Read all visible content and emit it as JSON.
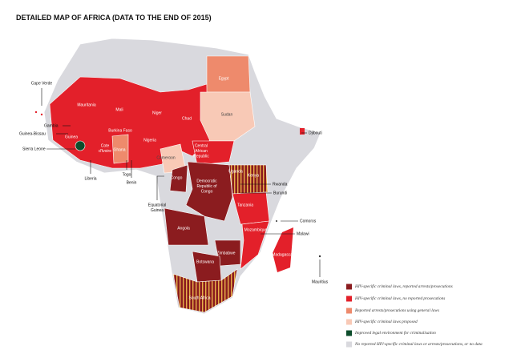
{
  "title": "DETAILED MAP OF AFRICA (DATA TO THE END OF 2015)",
  "labels": [
    [
      "Cape Verde"
    ],
    [
      "Mauritania"
    ],
    [
      "Mali"
    ],
    [
      "Niger"
    ],
    [
      "Chad"
    ],
    [
      "Egypt"
    ],
    [
      "Sudan"
    ],
    [
      "Djibouti"
    ],
    [
      "Gambia"
    ],
    [
      "Guinea-Bissau"
    ],
    [
      "Guinea"
    ],
    [
      "Sierra Leone"
    ],
    [
      "Liberia"
    ],
    [
      "Cote",
      "d'Ivoire"
    ],
    [
      "Burkina Faso"
    ],
    [
      "Ghana"
    ],
    [
      "Togo"
    ],
    [
      "Benin"
    ],
    [
      "Nigeria"
    ],
    [
      "Cameroon"
    ],
    [
      "Central",
      "African",
      "Republic"
    ],
    [
      "Congo"
    ],
    [
      "Equatorial",
      "Guinea"
    ],
    [
      "Democratic",
      "Republic of",
      "Congo"
    ],
    [
      "Uganda"
    ],
    [
      "Kenya"
    ],
    [
      "Rwanda"
    ],
    [
      "Burundi"
    ],
    [
      "Tanzania"
    ],
    [
      "Comoros"
    ],
    [
      "Malawi"
    ],
    [
      "Mozambique"
    ],
    [
      "Madagascar"
    ],
    [
      "Angola"
    ],
    [
      "Zimbabwe"
    ],
    [
      "Botswana"
    ],
    [
      "South Africa"
    ],
    [
      "Mauritius"
    ]
  ],
  "legend": [
    {
      "label": "HIV-specific criminal laws, reported arrests/prosecutions",
      "color": "#8b1c1f"
    },
    {
      "label": "HIV-specific criminal laws, no reported prosecutions",
      "color": "#e3202a"
    },
    {
      "label": "Reported arrests/prosecutions using general laws",
      "color": "#ee8a6c"
    },
    {
      "label": "HIV-specific criminal laws proposed",
      "color": "#f8c9b6"
    },
    {
      "label": "Improved legal environment for criminalisation",
      "color": "#0d4d2c"
    },
    {
      "label": "No reported HIV-specific criminal laws or arrests/prosecutions, or no data",
      "color": "#d9d9de"
    }
  ]
}
